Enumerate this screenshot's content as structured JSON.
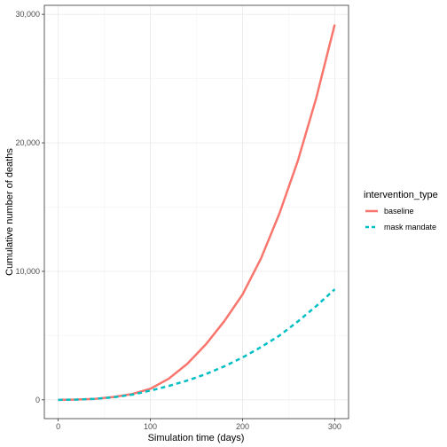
{
  "chart_data": {
    "type": "line",
    "xlabel": "Simulation time (days)",
    "ylabel": "Cumulative number of deaths",
    "xlim": [
      -15,
      315
    ],
    "ylim": [
      -1460,
      30700
    ],
    "x_ticks": [
      0,
      100,
      200,
      300
    ],
    "x_tick_labels": [
      "0",
      "100",
      "200",
      "300"
    ],
    "y_ticks": [
      0,
      10000,
      20000,
      30000
    ],
    "y_tick_labels": [
      "0",
      "10,000",
      "20,000",
      "30,000"
    ],
    "grid": true,
    "legend": {
      "title": "intervention_type",
      "placement": "right"
    },
    "series": [
      {
        "name": "baseline",
        "color": "#F8766D",
        "style": "solid",
        "x": [
          0,
          20,
          40,
          60,
          80,
          100,
          120,
          140,
          160,
          180,
          200,
          220,
          240,
          260,
          280,
          300
        ],
        "y": [
          0,
          20,
          80,
          220,
          450,
          860,
          1650,
          2800,
          4300,
          6100,
          8200,
          11000,
          14500,
          18600,
          23500,
          29200
        ]
      },
      {
        "name": "mask mandate",
        "color": "#00BFC4",
        "style": "dashed",
        "x": [
          0,
          20,
          40,
          60,
          80,
          100,
          120,
          140,
          160,
          180,
          200,
          220,
          240,
          260,
          280,
          300
        ],
        "y": [
          0,
          20,
          80,
          200,
          400,
          720,
          1080,
          1500,
          2000,
          2600,
          3300,
          4100,
          5000,
          6100,
          7300,
          8600
        ]
      }
    ]
  }
}
